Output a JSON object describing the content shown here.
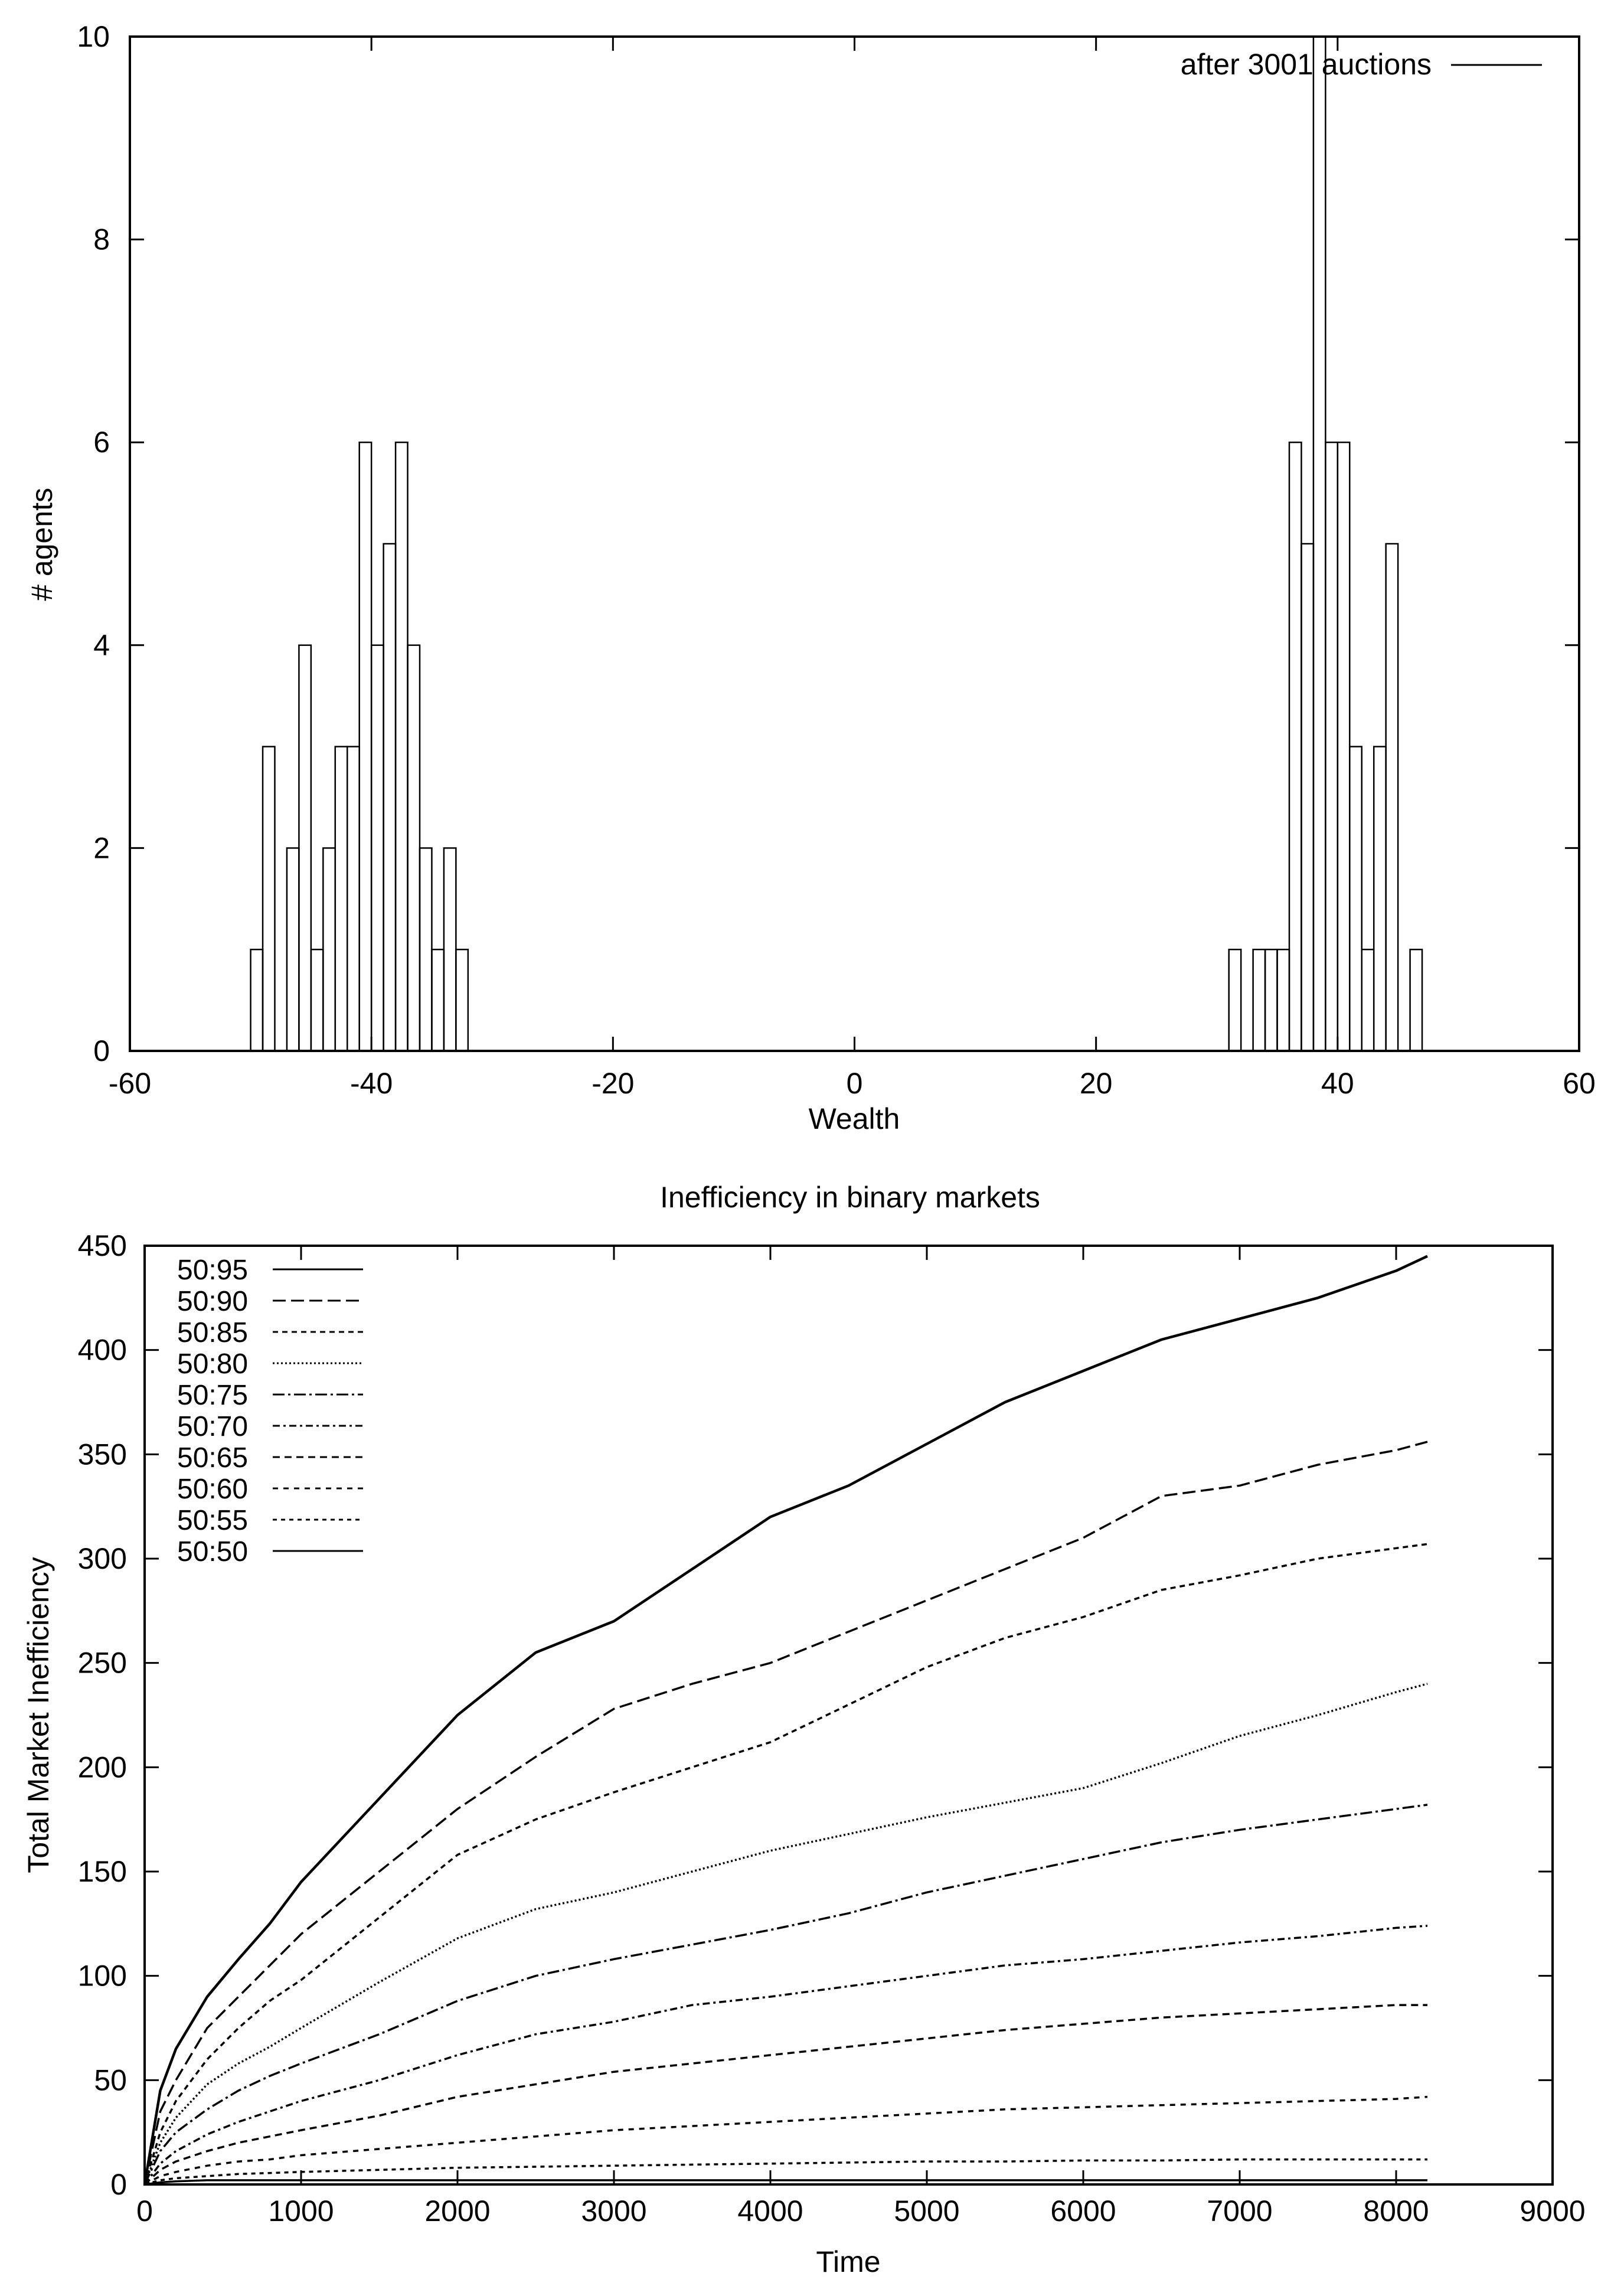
{
  "chart_data": [
    {
      "type": "bar",
      "subtype": "histogram",
      "title": "",
      "xlabel": "Wealth",
      "ylabel": "# agents",
      "xlim": [
        -60,
        60
      ],
      "ylim": [
        0,
        10
      ],
      "xticks": [
        -60,
        -40,
        -20,
        0,
        20,
        40,
        60
      ],
      "yticks": [
        0,
        2,
        4,
        6,
        8,
        10
      ],
      "bin_width": 1,
      "grid": false,
      "legend": {
        "position": "top-right",
        "entries": [
          "after 3001 auctions"
        ]
      },
      "series": [
        {
          "name": "after 3001 auctions",
          "bins": [
            {
              "x": -50,
              "count": 1
            },
            {
              "x": -49,
              "count": 3
            },
            {
              "x": -48,
              "count": 0
            },
            {
              "x": -47,
              "count": 2
            },
            {
              "x": -46,
              "count": 4
            },
            {
              "x": -45,
              "count": 1
            },
            {
              "x": -44,
              "count": 2
            },
            {
              "x": -43,
              "count": 3
            },
            {
              "x": -42,
              "count": 3
            },
            {
              "x": -41,
              "count": 6
            },
            {
              "x": -40,
              "count": 4
            },
            {
              "x": -39,
              "count": 5
            },
            {
              "x": -38,
              "count": 6
            },
            {
              "x": -37,
              "count": 4
            },
            {
              "x": -36,
              "count": 2
            },
            {
              "x": -35,
              "count": 1
            },
            {
              "x": -34,
              "count": 2
            },
            {
              "x": -33,
              "count": 1
            },
            {
              "x": 31,
              "count": 1
            },
            {
              "x": 33,
              "count": 1
            },
            {
              "x": 34,
              "count": 1
            },
            {
              "x": 35,
              "count": 1
            },
            {
              "x": 36,
              "count": 6
            },
            {
              "x": 37,
              "count": 5
            },
            {
              "x": 38,
              "count": 10
            },
            {
              "x": 39,
              "count": 6
            },
            {
              "x": 40,
              "count": 6
            },
            {
              "x": 41,
              "count": 3
            },
            {
              "x": 42,
              "count": 1
            },
            {
              "x": 43,
              "count": 3
            },
            {
              "x": 44,
              "count": 5
            },
            {
              "x": 45,
              "count": 0
            },
            {
              "x": 46,
              "count": 1
            }
          ]
        }
      ]
    },
    {
      "type": "line",
      "title": "Inefficiency in binary markets",
      "xlabel": "Time",
      "ylabel": "Total Market Inefficiency",
      "xlim": [
        0,
        9000
      ],
      "ylim": [
        0,
        450
      ],
      "xticks": [
        0,
        1000,
        2000,
        3000,
        4000,
        5000,
        6000,
        7000,
        8000,
        9000
      ],
      "yticks": [
        0,
        50,
        100,
        150,
        200,
        250,
        300,
        350,
        400,
        450
      ],
      "grid": false,
      "legend": {
        "position": "top-left"
      },
      "x": [
        0,
        100,
        200,
        400,
        600,
        800,
        1000,
        1500,
        2000,
        2500,
        3000,
        3500,
        4000,
        4500,
        5000,
        5500,
        6000,
        6500,
        7000,
        7500,
        8000,
        8200
      ],
      "series": [
        {
          "name": "50:95",
          "dash": "",
          "width": 4.5,
          "values": [
            0,
            45,
            65,
            90,
            108,
            125,
            145,
            185,
            225,
            255,
            270,
            295,
            320,
            335,
            355,
            375,
            390,
            405,
            415,
            425,
            438,
            445
          ]
        },
        {
          "name": "50:90",
          "dash": "22 9",
          "width": 3.5,
          "values": [
            0,
            35,
            50,
            75,
            90,
            105,
            120,
            150,
            180,
            205,
            228,
            240,
            250,
            265,
            280,
            295,
            310,
            330,
            335,
            345,
            352,
            356
          ]
        },
        {
          "name": "50:85",
          "dash": "9 7",
          "width": 3.5,
          "values": [
            0,
            25,
            40,
            60,
            75,
            88,
            98,
            128,
            158,
            175,
            188,
            200,
            212,
            230,
            248,
            262,
            272,
            285,
            292,
            300,
            305,
            307
          ]
        },
        {
          "name": "50:80",
          "dash": "3 4",
          "width": 3.5,
          "values": [
            0,
            20,
            32,
            48,
            58,
            66,
            75,
            97,
            118,
            132,
            140,
            150,
            160,
            168,
            176,
            183,
            190,
            202,
            215,
            225,
            236,
            240
          ]
        },
        {
          "name": "50:75",
          "dash": "20 6 4 6",
          "width": 3.5,
          "values": [
            0,
            16,
            25,
            36,
            45,
            52,
            58,
            72,
            88,
            100,
            108,
            115,
            122,
            130,
            140,
            148,
            156,
            164,
            170,
            175,
            180,
            182
          ]
        },
        {
          "name": "50:70",
          "dash": "12 6 4 6",
          "width": 3.5,
          "values": [
            0,
            10,
            16,
            24,
            30,
            35,
            40,
            50,
            62,
            72,
            78,
            86,
            90,
            95,
            100,
            105,
            108,
            112,
            116,
            119,
            123,
            124
          ]
        },
        {
          "name": "50:65",
          "dash": "12 8",
          "width": 3.5,
          "values": [
            0,
            7,
            11,
            16,
            20,
            23,
            26,
            33,
            42,
            48,
            54,
            58,
            62,
            66,
            70,
            74,
            77,
            80,
            82,
            84,
            86,
            86
          ]
        },
        {
          "name": "50:60",
          "dash": "9 9",
          "width": 3.5,
          "values": [
            0,
            4,
            6,
            9,
            11,
            12,
            14,
            17,
            20,
            23,
            26,
            28,
            30,
            32,
            34,
            36,
            37,
            38,
            39,
            40,
            41,
            42
          ]
        },
        {
          "name": "50:55",
          "dash": "7 7",
          "width": 3.5,
          "values": [
            0,
            2,
            3,
            4,
            5,
            5.5,
            6,
            7,
            8,
            8.5,
            9,
            9.5,
            10,
            10.5,
            11,
            11,
            11.5,
            11.5,
            12,
            12,
            12,
            12
          ]
        },
        {
          "name": "50:50",
          "dash": "",
          "width": 3.5,
          "values": [
            0,
            1,
            1.5,
            2,
            2,
            2,
            2,
            2,
            2,
            2,
            2,
            2,
            2,
            2,
            2,
            2,
            2,
            2,
            2,
            2,
            2,
            2
          ]
        }
      ]
    }
  ]
}
